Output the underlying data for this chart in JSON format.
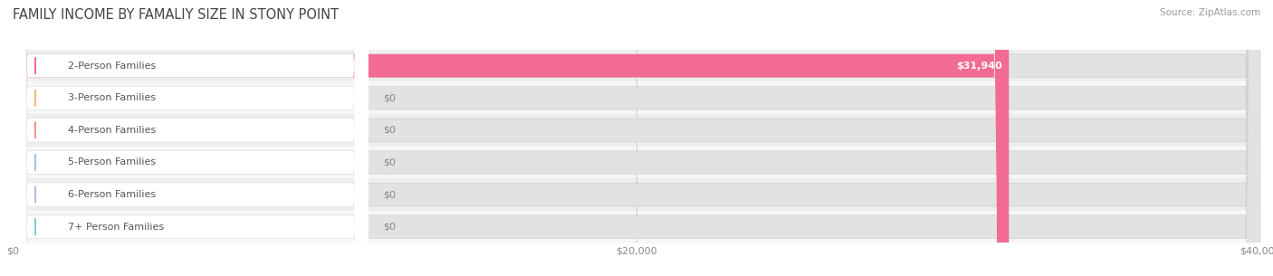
{
  "title": "FAMILY INCOME BY FAMALIY SIZE IN STONY POINT",
  "source": "Source: ZipAtlas.com",
  "categories": [
    "2-Person Families",
    "3-Person Families",
    "4-Person Families",
    "5-Person Families",
    "6-Person Families",
    "7+ Person Families"
  ],
  "values": [
    31940,
    0,
    0,
    0,
    0,
    0
  ],
  "bar_colors": [
    "#f26b92",
    "#f5b87a",
    "#f09488",
    "#a8bfe0",
    "#c9b0d8",
    "#7ececa"
  ],
  "value_labels": [
    "$31,940",
    "$0",
    "$0",
    "$0",
    "$0",
    "$0"
  ],
  "max_val": 40000,
  "xticks": [
    0,
    20000,
    40000
  ],
  "xtick_labels": [
    "$0",
    "$20,000",
    "$40,000"
  ],
  "title_fontsize": 10.5,
  "label_fontsize": 8,
  "value_fontsize": 8,
  "row_bg_colors": [
    "#eeeeee",
    "#f7f7f7"
  ]
}
